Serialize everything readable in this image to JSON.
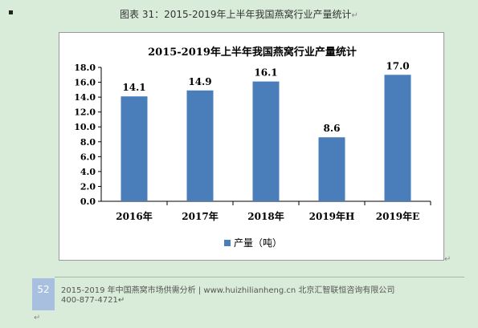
{
  "document": {
    "caption": "图表 31：2015-2019年上半年我国燕窝行业产量统计",
    "paragraph_mark": "↵"
  },
  "chart_data": {
    "type": "bar",
    "title": "2015-2019年上半年我国燕窝行业产量统计",
    "categories": [
      "2016年",
      "2017年",
      "2018年",
      "2019年H",
      "2019年E"
    ],
    "series": [
      {
        "name": "产量（吨）",
        "values": [
          14.1,
          14.9,
          16.1,
          8.6,
          17.0
        ]
      }
    ],
    "data_labels": [
      "14.1",
      "14.9",
      "16.1",
      "8.6",
      "17.0"
    ],
    "y_ticks": [
      "0.0",
      "2.0",
      "4.0",
      "6.0",
      "8.0",
      "10.0",
      "12.0",
      "14.0",
      "16.0",
      "18.0"
    ],
    "ylim": [
      0,
      18
    ],
    "grid": false,
    "legend_position": "bottom",
    "xlabel": "",
    "ylabel": "",
    "colors": {
      "bar": "#4a7ebb"
    }
  },
  "footer": {
    "page_number": "52",
    "line1": "2015-2019 年中国燕窝市场供需分析 | www.huizhilianheng.cn 北京汇智联恒咨询有限公司",
    "line2": "400-877-4721"
  }
}
